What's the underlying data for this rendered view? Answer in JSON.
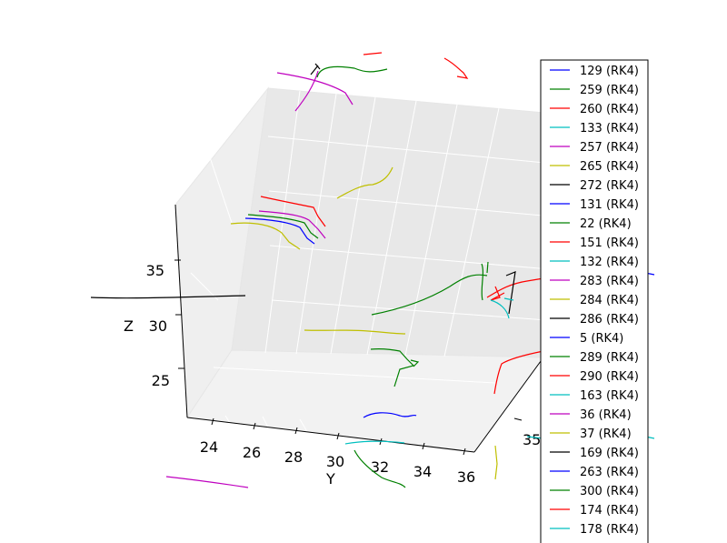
{
  "chart_data": {
    "type": "line",
    "projection": "3d",
    "title": "",
    "xlabel": "",
    "ylabel": "Y",
    "zlabel": "Z",
    "y_ticks": [
      "24",
      "26",
      "28",
      "30",
      "32",
      "34",
      "36"
    ],
    "z_ticks": [
      "25",
      "30",
      "35"
    ],
    "x_ticks_visible": [
      "35"
    ],
    "grid": true,
    "legend_position": "right",
    "series": [
      {
        "name": "129 (RK4)",
        "color": "#0000ff"
      },
      {
        "name": "259 (RK4)",
        "color": "#008000"
      },
      {
        "name": "260 (RK4)",
        "color": "#ff0000"
      },
      {
        "name": "133 (RK4)",
        "color": "#00bfbf"
      },
      {
        "name": "257 (RK4)",
        "color": "#bf00bf"
      },
      {
        "name": "265 (RK4)",
        "color": "#bfbf00"
      },
      {
        "name": "272 (RK4)",
        "color": "#000000"
      },
      {
        "name": "131 (RK4)",
        "color": "#0000ff"
      },
      {
        "name": "22 (RK4)",
        "color": "#008000"
      },
      {
        "name": "151 (RK4)",
        "color": "#ff0000"
      },
      {
        "name": "132 (RK4)",
        "color": "#00bfbf"
      },
      {
        "name": "283 (RK4)",
        "color": "#bf00bf"
      },
      {
        "name": "284 (RK4)",
        "color": "#bfbf00"
      },
      {
        "name": "286 (RK4)",
        "color": "#000000"
      },
      {
        "name": "5 (RK4)",
        "color": "#0000ff"
      },
      {
        "name": "289 (RK4)",
        "color": "#008000"
      },
      {
        "name": "290 (RK4)",
        "color": "#ff0000"
      },
      {
        "name": "163 (RK4)",
        "color": "#00bfbf"
      },
      {
        "name": "36 (RK4)",
        "color": "#bf00bf"
      },
      {
        "name": "37 (RK4)",
        "color": "#bfbf00"
      },
      {
        "name": "169 (RK4)",
        "color": "#000000"
      },
      {
        "name": "263 (RK4)",
        "color": "#0000ff"
      },
      {
        "name": "300 (RK4)",
        "color": "#008000"
      },
      {
        "name": "174 (RK4)",
        "color": "#ff0000"
      },
      {
        "name": "178 (RK4)",
        "color": "#00bfbf"
      }
    ]
  }
}
